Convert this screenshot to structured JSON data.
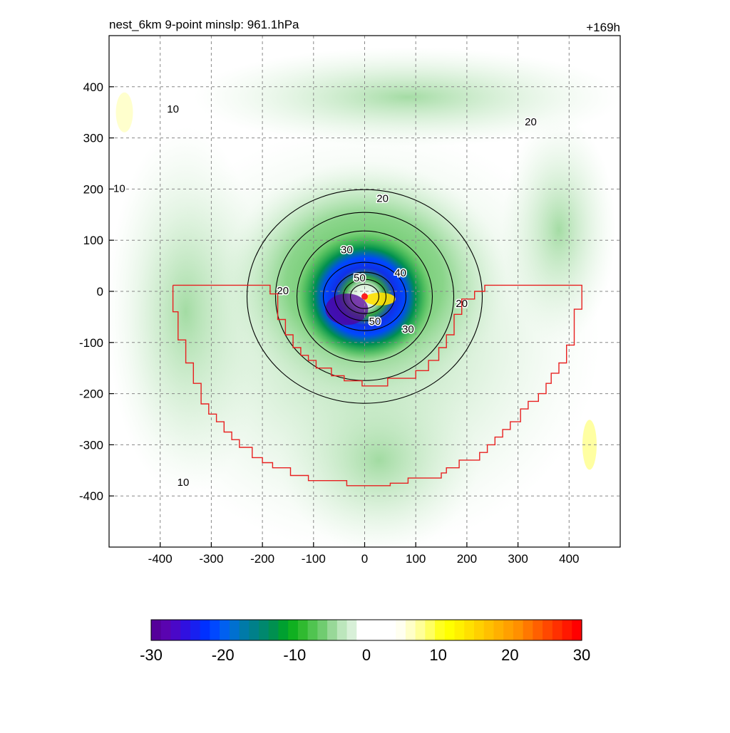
{
  "title_left": "nest_6km  9-point minslp: 961.1hPa",
  "title_right": "+169h",
  "chart_data": {
    "type": "contour-map",
    "xlim": [
      -500,
      500
    ],
    "ylim": [
      -500,
      500
    ],
    "x_ticks": [
      -400,
      -300,
      -200,
      -100,
      0,
      100,
      200,
      300,
      400
    ],
    "y_ticks": [
      400,
      300,
      200,
      100,
      0,
      -100,
      -200,
      -300,
      -400
    ],
    "x_tick_labels": [
      "-400",
      "-300",
      "-200",
      "-100",
      "0",
      "100",
      "200",
      "300",
      "400"
    ],
    "y_tick_labels": [
      "400",
      "300",
      "200",
      "100",
      "0",
      "-100",
      "-200",
      "-300",
      "-400"
    ],
    "grid": true,
    "center_marker": {
      "x": 0,
      "y": -10,
      "color": "#ff2020"
    },
    "contour_lines": [
      {
        "label": "10",
        "x": -375,
        "y": 355
      },
      {
        "label": "10",
        "x": -480,
        "y": 200
      },
      {
        "label": "10",
        "x": -355,
        "y": -375
      },
      {
        "label": "20",
        "x": 35,
        "y": 180
      },
      {
        "label": "20",
        "x": -160,
        "y": 0
      },
      {
        "label": "20",
        "x": 190,
        "y": -25
      },
      {
        "label": "20",
        "x": 325,
        "y": 330
      },
      {
        "label": "30",
        "x": -35,
        "y": 80
      },
      {
        "label": "30",
        "x": 85,
        "y": -75
      },
      {
        "label": "40",
        "x": 70,
        "y": 35
      },
      {
        "label": "50",
        "x": -10,
        "y": 25
      },
      {
        "label": "50",
        "x": 20,
        "y": -60
      }
    ],
    "boundary": {
      "color": "#e82020",
      "points": [
        [
          -375,
          12
        ],
        [
          -185,
          12
        ],
        [
          -185,
          -5
        ],
        [
          -170,
          -5
        ],
        [
          -170,
          -55
        ],
        [
          -155,
          -55
        ],
        [
          -155,
          -85
        ],
        [
          -140,
          -85
        ],
        [
          -140,
          -110
        ],
        [
          -125,
          -110
        ],
        [
          -125,
          -125
        ],
        [
          -110,
          -125
        ],
        [
          -110,
          -135
        ],
        [
          -95,
          -135
        ],
        [
          -95,
          -150
        ],
        [
          -65,
          -150
        ],
        [
          -65,
          -165
        ],
        [
          -40,
          -165
        ],
        [
          -40,
          -175
        ],
        [
          -5,
          -175
        ],
        [
          -5,
          -185
        ],
        [
          45,
          -185
        ],
        [
          45,
          -170
        ],
        [
          100,
          -170
        ],
        [
          100,
          -155
        ],
        [
          125,
          -155
        ],
        [
          125,
          -135
        ],
        [
          145,
          -135
        ],
        [
          145,
          -110
        ],
        [
          160,
          -110
        ],
        [
          160,
          -85
        ],
        [
          175,
          -85
        ],
        [
          175,
          -45
        ],
        [
          190,
          -45
        ],
        [
          190,
          -15
        ],
        [
          215,
          -15
        ],
        [
          215,
          0
        ],
        [
          235,
          0
        ],
        [
          235,
          12
        ],
        [
          425,
          12
        ],
        [
          425,
          -35
        ],
        [
          410,
          -35
        ],
        [
          410,
          -105
        ],
        [
          395,
          -105
        ],
        [
          395,
          -140
        ],
        [
          380,
          -140
        ],
        [
          380,
          -160
        ],
        [
          365,
          -160
        ],
        [
          365,
          -180
        ],
        [
          355,
          -180
        ],
        [
          355,
          -200
        ],
        [
          340,
          -200
        ],
        [
          340,
          -215
        ],
        [
          320,
          -215
        ],
        [
          320,
          -230
        ],
        [
          305,
          -230
        ],
        [
          305,
          -255
        ],
        [
          285,
          -255
        ],
        [
          285,
          -270
        ],
        [
          270,
          -270
        ],
        [
          270,
          -285
        ],
        [
          255,
          -285
        ],
        [
          255,
          -300
        ],
        [
          240,
          -300
        ],
        [
          240,
          -315
        ],
        [
          225,
          -315
        ],
        [
          225,
          -330
        ],
        [
          185,
          -330
        ],
        [
          185,
          -345
        ],
        [
          160,
          -345
        ],
        [
          160,
          -355
        ],
        [
          150,
          -355
        ],
        [
          150,
          -365
        ],
        [
          85,
          -365
        ],
        [
          85,
          -375
        ],
        [
          50,
          -375
        ],
        [
          50,
          -380
        ],
        [
          -35,
          -380
        ],
        [
          -35,
          -370
        ],
        [
          -110,
          -370
        ],
        [
          -110,
          -360
        ],
        [
          -145,
          -360
        ],
        [
          -145,
          -345
        ],
        [
          -180,
          -345
        ],
        [
          -180,
          -335
        ],
        [
          -200,
          -335
        ],
        [
          -200,
          -325
        ],
        [
          -220,
          -325
        ],
        [
          -220,
          -305
        ],
        [
          -245,
          -305
        ],
        [
          -245,
          -290
        ],
        [
          -260,
          -290
        ],
        [
          -260,
          -275
        ],
        [
          -275,
          -275
        ],
        [
          -275,
          -255
        ],
        [
          -290,
          -255
        ],
        [
          -290,
          -240
        ],
        [
          -305,
          -240
        ],
        [
          -305,
          -220
        ],
        [
          -320,
          -220
        ],
        [
          -320,
          -180
        ],
        [
          -335,
          -180
        ],
        [
          -335,
          -140
        ],
        [
          -350,
          -140
        ],
        [
          -350,
          -95
        ],
        [
          -365,
          -95
        ],
        [
          -365,
          -40
        ],
        [
          -375,
          -40
        ],
        [
          -375,
          12
        ]
      ]
    },
    "colorbar": {
      "range": [
        -30,
        30
      ],
      "tick_values": [
        -30,
        -20,
        -10,
        0,
        10,
        20,
        30
      ],
      "tick_labels": [
        "-30",
        "-20",
        "-10",
        "0",
        "10",
        "20",
        "30"
      ],
      "colors": [
        "#55009a",
        "#5a04b0",
        "#4a08c8",
        "#3010e0",
        "#1820f0",
        "#0030ff",
        "#0048ff",
        "#0060f0",
        "#0070d0",
        "#007aa8",
        "#00808a",
        "#00886e",
        "#009050",
        "#00a030",
        "#10b020",
        "#30ba30",
        "#50c450",
        "#70cc70",
        "#98d898",
        "#bce6bc",
        "#d8f0d8",
        "#ffffff",
        "#ffffff",
        "#ffffff",
        "#ffffff",
        "#fffff0",
        "#ffffc8",
        "#ffff98",
        "#ffff60",
        "#ffff20",
        "#ffff00",
        "#fff000",
        "#ffe000",
        "#ffd000",
        "#ffc000",
        "#ffb000",
        "#ffa000",
        "#ff9000",
        "#ff7800",
        "#ff6000",
        "#ff4800",
        "#ff3000",
        "#ff1800",
        "#ff0000"
      ]
    }
  }
}
